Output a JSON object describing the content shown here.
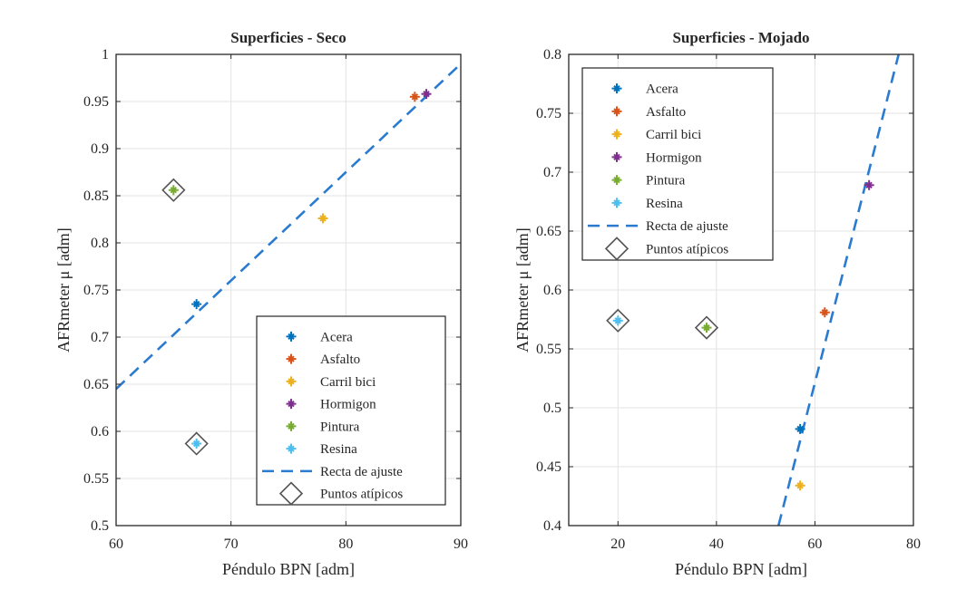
{
  "chart_data": [
    {
      "type": "scatter",
      "title": "Superficies - Seco",
      "xlabel": "Péndulo BPN [adm]",
      "ylabel": "AFRmeter μ [adm]",
      "xlim": [
        60,
        90
      ],
      "ylim": [
        0.5,
        1
      ],
      "xticks": [
        60,
        70,
        80,
        90
      ],
      "yticks": [
        0.5,
        0.55,
        0.6,
        0.65,
        0.7,
        0.75,
        0.8,
        0.85,
        0.9,
        0.95,
        1
      ],
      "grid": true,
      "legend_position": "bottom-right",
      "series": [
        {
          "name": "Acera",
          "color": "#0072BD",
          "x": [
            67
          ],
          "y": [
            0.735
          ]
        },
        {
          "name": "Asfalto",
          "color": "#D95319",
          "x": [
            86
          ],
          "y": [
            0.955
          ]
        },
        {
          "name": "Carril bici",
          "color": "#EDB120",
          "x": [
            78
          ],
          "y": [
            0.826
          ]
        },
        {
          "name": "Hormigon",
          "color": "#7E2F8E",
          "x": [
            87
          ],
          "y": [
            0.958
          ]
        },
        {
          "name": "Pintura",
          "color": "#77AC30",
          "x": [
            65
          ],
          "y": [
            0.856
          ]
        },
        {
          "name": "Resina",
          "color": "#4DBEEE",
          "x": [
            67
          ],
          "y": [
            0.587
          ]
        }
      ],
      "fit_line": {
        "name": "Recta de ajuste",
        "color": "#2A7BD0",
        "x": [
          60,
          90
        ],
        "y": [
          0.645,
          0.99
        ]
      },
      "outliers": {
        "name": "Puntos atípicos",
        "color": "#555555",
        "x": [
          65,
          67
        ],
        "y": [
          0.856,
          0.587
        ]
      }
    },
    {
      "type": "scatter",
      "title": "Superficies - Mojado",
      "xlabel": "Péndulo BPN [adm]",
      "ylabel": "AFRmeter μ [adm]",
      "xlim": [
        10,
        80
      ],
      "ylim": [
        0.4,
        0.8
      ],
      "xticks": [
        20,
        40,
        60,
        80
      ],
      "yticks": [
        0.4,
        0.45,
        0.5,
        0.55,
        0.6,
        0.65,
        0.7,
        0.75,
        0.8
      ],
      "grid": true,
      "legend_position": "top-left",
      "series": [
        {
          "name": "Acera",
          "color": "#0072BD",
          "x": [
            57
          ],
          "y": [
            0.482
          ]
        },
        {
          "name": "Asfalto",
          "color": "#D95319",
          "x": [
            62
          ],
          "y": [
            0.581
          ]
        },
        {
          "name": "Carril bici",
          "color": "#EDB120",
          "x": [
            57
          ],
          "y": [
            0.434
          ]
        },
        {
          "name": "Hormigon",
          "color": "#7E2F8E",
          "x": [
            71
          ],
          "y": [
            0.689
          ]
        },
        {
          "name": "Pintura",
          "color": "#77AC30",
          "x": [
            38
          ],
          "y": [
            0.568
          ]
        },
        {
          "name": "Resina",
          "color": "#4DBEEE",
          "x": [
            20
          ],
          "y": [
            0.574
          ]
        }
      ],
      "fit_line": {
        "name": "Recta de ajuste",
        "color": "#2A7BD0",
        "x": [
          52.6,
          77.0
        ],
        "y": [
          0.4,
          0.8
        ]
      },
      "outliers": {
        "name": "Puntos atípicos",
        "color": "#555555",
        "x": [
          20,
          38
        ],
        "y": [
          0.574,
          0.568
        ]
      }
    }
  ]
}
